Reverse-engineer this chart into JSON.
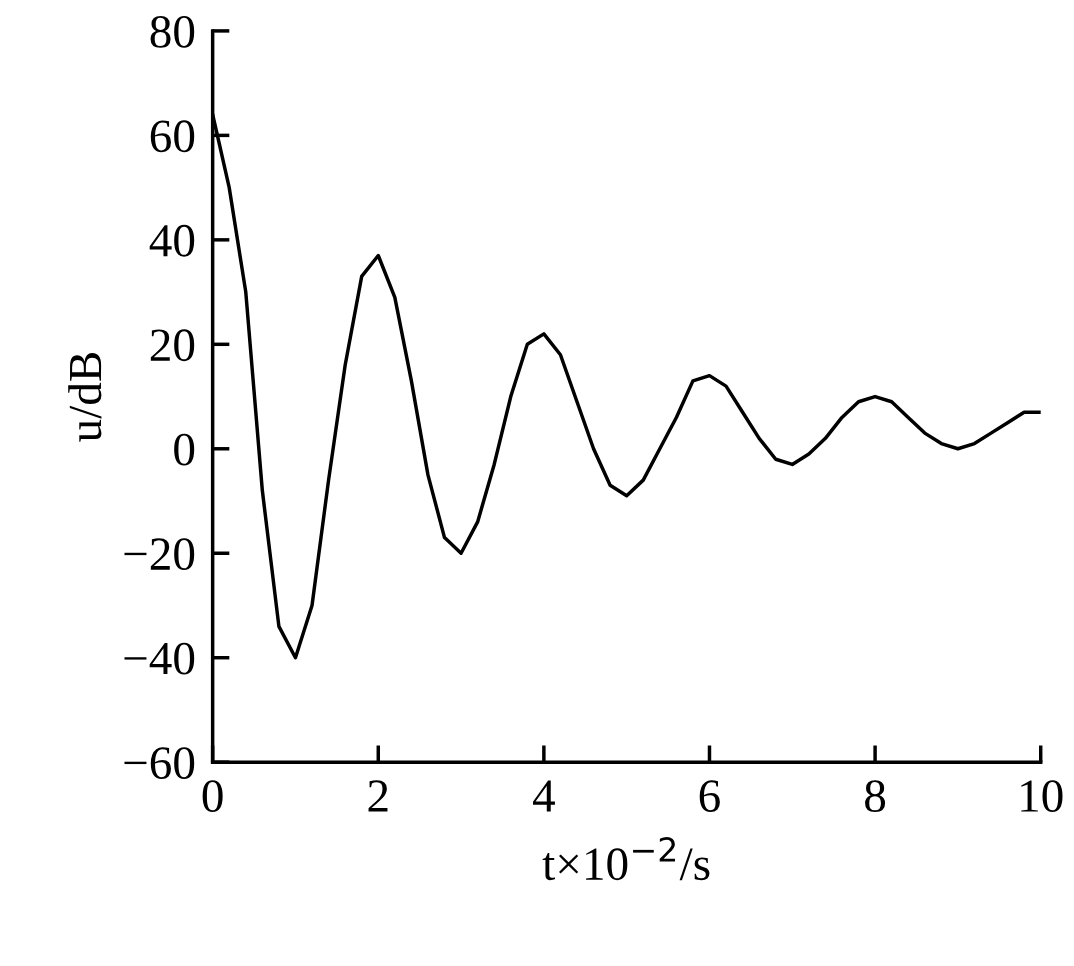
{
  "chart_data": {
    "type": "line",
    "x": [
      0,
      0.2,
      0.4,
      0.6,
      0.8,
      1.0,
      1.2,
      1.4,
      1.6,
      1.8,
      2.0,
      2.2,
      2.4,
      2.6,
      2.8,
      3.0,
      3.2,
      3.4,
      3.6,
      3.8,
      4.0,
      4.2,
      4.4,
      4.6,
      4.8,
      5.0,
      5.2,
      5.4,
      5.6,
      5.8,
      6.0,
      6.2,
      6.4,
      6.6,
      6.8,
      7.0,
      7.2,
      7.4,
      7.6,
      7.8,
      8.0,
      8.2,
      8.4,
      8.6,
      8.8,
      9.0,
      9.2,
      9.4,
      9.6,
      9.8,
      10.0
    ],
    "series": [
      {
        "color": "#000000",
        "values": [
          64,
          50,
          30,
          -8,
          -34,
          -40,
          -30,
          -6,
          16,
          33,
          37,
          29,
          13,
          -5,
          -17,
          -20,
          -14,
          -3,
          10,
          20,
          22,
          18,
          9,
          0,
          -7,
          -9,
          -6,
          0,
          6,
          13,
          14,
          12,
          7,
          2,
          -2,
          -3,
          -1,
          2,
          6,
          9,
          10,
          9,
          6,
          3,
          1,
          0,
          1,
          3,
          5,
          7,
          7
        ]
      }
    ],
    "xlabel": "t×10$^{−2}$/s",
    "ylabel": "u/dB",
    "xlim": [
      0,
      10
    ],
    "ylim": [
      -60,
      80
    ],
    "xticks": [
      0,
      2,
      4,
      6,
      8,
      10
    ],
    "yticks": [
      {
        "value": -60,
        "label": "−60"
      },
      {
        "value": -40,
        "label": "−40"
      },
      {
        "value": -20,
        "label": "−20"
      },
      0,
      20,
      40,
      60,
      80
    ],
    "grid": false,
    "legend": false,
    "marker": "none",
    "line_style": "solid"
  }
}
